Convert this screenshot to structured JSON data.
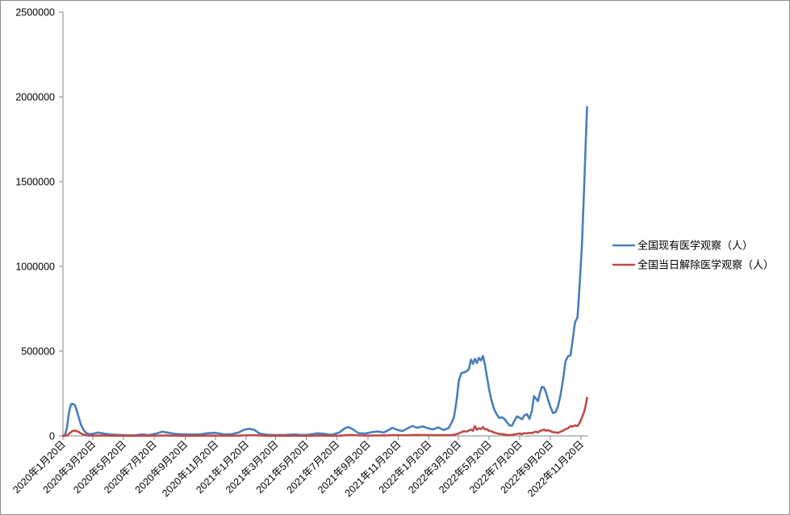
{
  "chart_data": {
    "type": "line",
    "legend": "right",
    "grid": false,
    "ylim": [
      0,
      2500000
    ],
    "yticks": [
      0,
      500000,
      1000000,
      1500000,
      2000000,
      2500000
    ],
    "xlim": [
      "2020-01-20",
      "2022-12-02"
    ],
    "xticks": [
      "2020年1月20日",
      "2020年3月20日",
      "2020年5月20日",
      "2020年7月20日",
      "2020年9月20日",
      "2020年11月20日",
      "2021年1月20日",
      "2021年3月20日",
      "2021年5月20日",
      "2021年7月20日",
      "2021年9月20日",
      "2021年11月20日",
      "2022年1月20日",
      "2022年3月20日",
      "2022年5月20日",
      "2022年7月20日",
      "2022年9月20日",
      "2022年11月20日"
    ],
    "x": [
      "2020-01-20",
      "2020-01-24",
      "2020-01-28",
      "2020-02-01",
      "2020-02-05",
      "2020-02-09",
      "2020-02-13",
      "2020-02-17",
      "2020-02-21",
      "2020-02-25",
      "2020-03-01",
      "2020-03-06",
      "2020-03-12",
      "2020-03-20",
      "2020-03-30",
      "2020-04-10",
      "2020-04-25",
      "2020-05-10",
      "2020-05-25",
      "2020-06-10",
      "2020-06-25",
      "2020-07-10",
      "2020-07-25",
      "2020-08-05",
      "2020-08-15",
      "2020-08-30",
      "2020-09-15",
      "2020-10-01",
      "2020-10-20",
      "2020-11-05",
      "2020-11-20",
      "2020-12-05",
      "2020-12-20",
      "2021-01-05",
      "2021-01-15",
      "2021-01-25",
      "2021-02-05",
      "2021-02-15",
      "2021-03-01",
      "2021-03-20",
      "2021-04-10",
      "2021-04-25",
      "2021-05-10",
      "2021-05-25",
      "2021-06-10",
      "2021-06-25",
      "2021-07-10",
      "2021-07-25",
      "2021-08-05",
      "2021-08-12",
      "2021-08-22",
      "2021-09-01",
      "2021-09-15",
      "2021-09-28",
      "2021-10-10",
      "2021-10-22",
      "2021-11-01",
      "2021-11-08",
      "2021-11-18",
      "2021-11-28",
      "2021-12-08",
      "2021-12-18",
      "2021-12-28",
      "2022-01-08",
      "2022-01-18",
      "2022-01-28",
      "2022-02-08",
      "2022-02-18",
      "2022-02-28",
      "2022-03-06",
      "2022-03-11",
      "2022-03-16",
      "2022-03-21",
      "2022-03-26",
      "2022-03-31",
      "2022-04-05",
      "2022-04-10",
      "2022-04-14",
      "2022-04-18",
      "2022-04-22",
      "2022-04-26",
      "2022-04-30",
      "2022-05-04",
      "2022-05-08",
      "2022-05-12",
      "2022-05-16",
      "2022-05-20",
      "2022-05-25",
      "2022-05-30",
      "2022-06-05",
      "2022-06-10",
      "2022-06-15",
      "2022-06-20",
      "2022-06-25",
      "2022-06-30",
      "2022-07-05",
      "2022-07-10",
      "2022-07-15",
      "2022-07-20",
      "2022-07-25",
      "2022-07-30",
      "2022-08-04",
      "2022-08-09",
      "2022-08-14",
      "2022-08-18",
      "2022-08-22",
      "2022-08-26",
      "2022-08-30",
      "2022-09-03",
      "2022-09-07",
      "2022-09-11",
      "2022-09-15",
      "2022-09-20",
      "2022-09-25",
      "2022-09-30",
      "2022-10-05",
      "2022-10-10",
      "2022-10-15",
      "2022-10-20",
      "2022-10-25",
      "2022-10-30",
      "2022-11-03",
      "2022-11-08",
      "2022-11-13",
      "2022-11-18",
      "2022-11-22",
      "2022-11-26",
      "2022-11-29",
      "2022-12-02"
    ],
    "series": [
      {
        "name": "全国现有医学观察（人）",
        "color": "#4A7EBB",
        "values": [
          0,
          6000,
          48000,
          138000,
          186000,
          189000,
          181000,
          145000,
          105000,
          66000,
          36000,
          18000,
          10000,
          12000,
          20000,
          14000,
          8000,
          6000,
          4000,
          3000,
          8000,
          5000,
          14000,
          25000,
          20000,
          12000,
          9000,
          8000,
          9000,
          16000,
          18000,
          10000,
          9000,
          20000,
          35000,
          42000,
          36000,
          15000,
          7000,
          5000,
          6000,
          9000,
          6000,
          7000,
          15000,
          12000,
          6000,
          20000,
          45000,
          52000,
          38000,
          16000,
          14000,
          22000,
          26000,
          20000,
          35000,
          48000,
          36000,
          28000,
          44000,
          58000,
          48000,
          56000,
          45000,
          38000,
          50000,
          35000,
          45000,
          75000,
          110000,
          200000,
          330000,
          370000,
          375000,
          380000,
          395000,
          450000,
          425000,
          455000,
          430000,
          460000,
          445000,
          472000,
          420000,
          350000,
          280000,
          210000,
          160000,
          125000,
          105000,
          110000,
          100000,
          80000,
          62000,
          60000,
          90000,
          115000,
          108000,
          98000,
          122000,
          128000,
          100000,
          150000,
          235000,
          220000,
          205000,
          255000,
          290000,
          285000,
          255000,
          215000,
          170000,
          135000,
          140000,
          175000,
          240000,
          330000,
          440000,
          470000,
          475000,
          560000,
          670000,
          700000,
          930000,
          1140000,
          1450000,
          1700000,
          1940000
        ]
      },
      {
        "name": "全国当日解除医学观察（人）",
        "color": "#BE4B48",
        "values": [
          0,
          500,
          3000,
          12000,
          22000,
          30000,
          31000,
          28000,
          22000,
          14000,
          8000,
          4000,
          2000,
          1500,
          2000,
          2000,
          1200,
          800,
          600,
          500,
          900,
          700,
          1200,
          2000,
          2000,
          1200,
          900,
          800,
          900,
          1500,
          1600,
          1200,
          1000,
          1500,
          3000,
          4000,
          4000,
          2500,
          1000,
          700,
          700,
          900,
          800,
          800,
          1500,
          1500,
          900,
          1500,
          3500,
          5000,
          5000,
          3000,
          1800,
          2000,
          2500,
          2500,
          3000,
          4500,
          4500,
          3500,
          4000,
          5000,
          5500,
          5000,
          5000,
          4500,
          4000,
          4500,
          4000,
          5000,
          7000,
          10000,
          15000,
          22000,
          28000,
          25000,
          32000,
          38000,
          30000,
          58000,
          36000,
          45000,
          40000,
          52000,
          38000,
          40000,
          30000,
          28000,
          20000,
          15000,
          12000,
          10000,
          8000,
          6000,
          5000,
          6000,
          9000,
          12000,
          14000,
          11000,
          16000,
          15000,
          18000,
          16000,
          22000,
          25000,
          20000,
          30000,
          32000,
          38000,
          30000,
          34000,
          28000,
          22000,
          20000,
          18000,
          25000,
          30000,
          40000,
          45000,
          58000,
          55000,
          62000,
          58000,
          80000,
          110000,
          140000,
          175000,
          225000
        ]
      }
    ]
  }
}
